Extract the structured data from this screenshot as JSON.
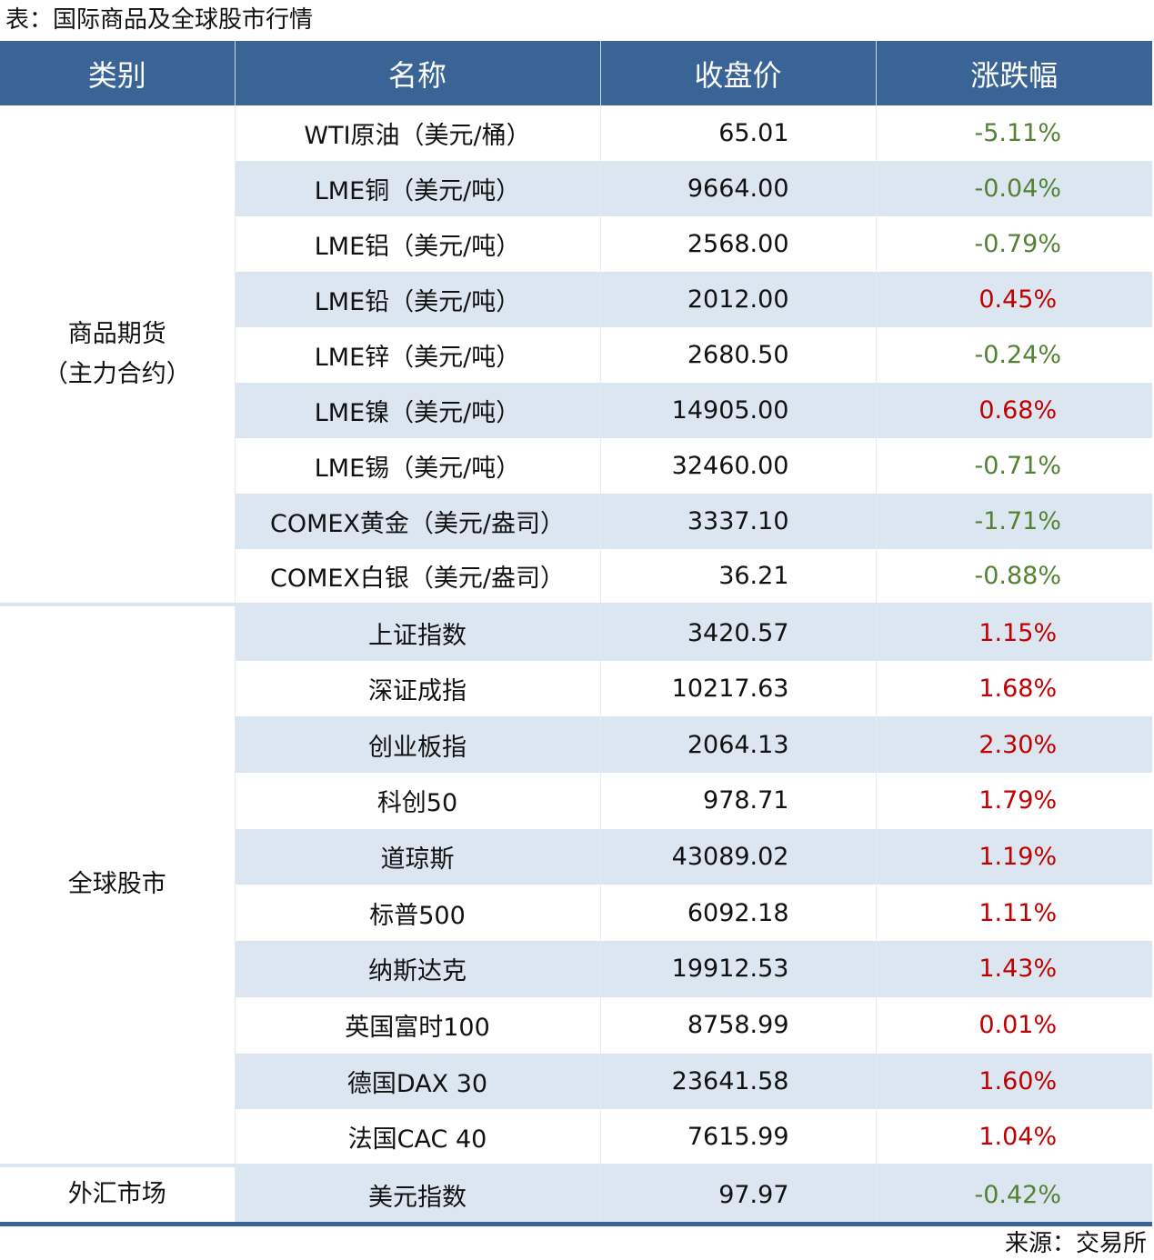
{
  "title": "表：国际商品及全球股市行情",
  "source": "来源：交易所",
  "colors": {
    "header_bg": "#3a6496",
    "shade": "#dce6f1",
    "up": "#c00000",
    "down": "#548235"
  },
  "chart_data": {
    "type": "table",
    "columns": [
      "类别",
      "名称",
      "收盘价",
      "涨跌幅"
    ],
    "groups": [
      {
        "category": "商品期货（主力合约）",
        "rows": [
          {
            "name": "WTI原油（美元/桶）",
            "close": "65.01",
            "change": "-5.11%"
          },
          {
            "name": "LME铜（美元/吨）",
            "close": "9664.00",
            "change": "-0.04%"
          },
          {
            "name": "LME铝（美元/吨）",
            "close": "2568.00",
            "change": "-0.79%"
          },
          {
            "name": "LME铅（美元/吨）",
            "close": "2012.00",
            "change": "0.45%"
          },
          {
            "name": "LME锌（美元/吨）",
            "close": "2680.50",
            "change": "-0.24%"
          },
          {
            "name": "LME镍（美元/吨）",
            "close": "14905.00",
            "change": "0.68%"
          },
          {
            "name": "LME锡（美元/吨）",
            "close": "32460.00",
            "change": "-0.71%"
          },
          {
            "name": "COMEX黄金（美元/盎司）",
            "close": "3337.10",
            "change": "-1.71%"
          },
          {
            "name": "COMEX白银（美元/盎司）",
            "close": "36.21",
            "change": "-0.88%"
          }
        ]
      },
      {
        "category": "全球股市",
        "rows": [
          {
            "name": "上证指数",
            "close": "3420.57",
            "change": "1.15%"
          },
          {
            "name": "深证成指",
            "close": "10217.63",
            "change": "1.68%"
          },
          {
            "name": "创业板指",
            "close": "2064.13",
            "change": "2.30%"
          },
          {
            "name": "科创50",
            "close": "978.71",
            "change": "1.79%"
          },
          {
            "name": "道琼斯",
            "close": "43089.02",
            "change": "1.19%"
          },
          {
            "name": "标普500",
            "close": "6092.18",
            "change": "1.11%"
          },
          {
            "name": "纳斯达克",
            "close": "19912.53",
            "change": "1.43%"
          },
          {
            "name": "英国富时100",
            "close": "8758.99",
            "change": "0.01%"
          },
          {
            "name": "德国DAX 30",
            "close": "23641.58",
            "change": "1.60%"
          },
          {
            "name": "法国CAC 40",
            "close": "7615.99",
            "change": "1.04%"
          }
        ]
      },
      {
        "category": "外汇市场",
        "rows": [
          {
            "name": "美元指数",
            "close": "97.97",
            "change": "-0.42%"
          }
        ]
      }
    ]
  }
}
